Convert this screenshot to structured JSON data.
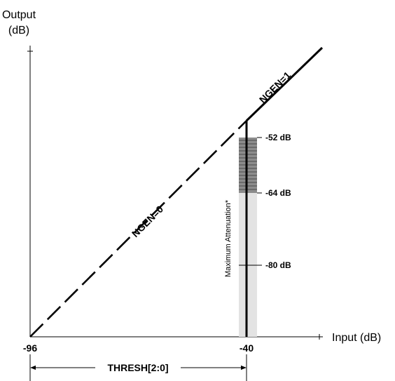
{
  "output_axis": {
    "line1": "Output",
    "line2": "(dB)"
  },
  "input_axis": "Input (dB)",
  "x_ticks": {
    "left": "-96",
    "right": "-40"
  },
  "segments": {
    "ngen0": "NGEN=0",
    "ngen1": "NGEN=1"
  },
  "attenuation": {
    "title": "Maximum Attenuation*",
    "levels": [
      "-52 dB",
      "-64 dB",
      "-80 dB"
    ]
  },
  "thresh_label": "THRESH[2:0]",
  "colors": {
    "line": "#000000",
    "band": "#e3e3e3",
    "hatch_fill": "#8c8c8c",
    "hatch_lines": "#4a4a4a"
  }
}
